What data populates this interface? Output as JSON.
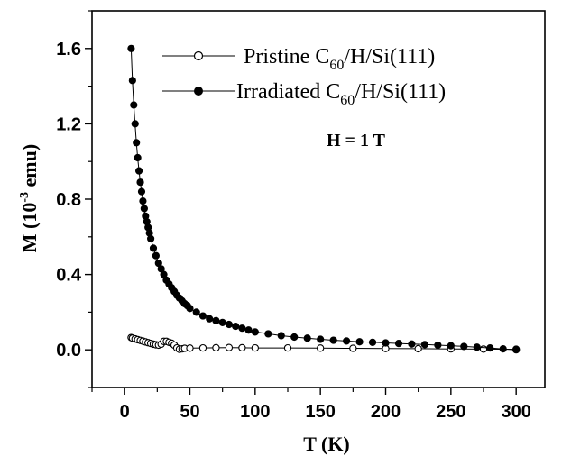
{
  "chart_data": {
    "type": "scatter",
    "xlabel": "T (K)",
    "ylabel": {
      "prefix": "M (10",
      "sup": "-3",
      "suffix": " emu)"
    },
    "xlim": [
      -25,
      322
    ],
    "ylim": [
      -0.2,
      1.8
    ],
    "xticks": [
      0,
      50,
      100,
      150,
      200,
      250,
      300
    ],
    "xtick_labels": [
      "0",
      "50",
      "100",
      "150",
      "200",
      "250",
      "300"
    ],
    "yticks": [
      0.0,
      0.4,
      0.8,
      1.2,
      1.6
    ],
    "ytick_labels": [
      "0.0",
      "0.4",
      "0.8",
      "1.2",
      "1.6"
    ],
    "annotation": "H = 1 T",
    "legend_position": "top-right",
    "series": [
      {
        "name": {
          "prefix": "Pristine C",
          "sub": "60",
          "suffix": "/H/Si(111)"
        },
        "marker": "open-circle",
        "line": true,
        "x": [
          5,
          6,
          8,
          10,
          12,
          14,
          16,
          18,
          20,
          22,
          24,
          26,
          28,
          30,
          32,
          34,
          36,
          38,
          40,
          42,
          44,
          46,
          50,
          60,
          70,
          80,
          90,
          100,
          125,
          150,
          175,
          200,
          225,
          250,
          275,
          300
        ],
        "y": [
          0.065,
          0.062,
          0.058,
          0.054,
          0.05,
          0.046,
          0.042,
          0.038,
          0.034,
          0.03,
          0.027,
          0.025,
          0.03,
          0.045,
          0.045,
          0.04,
          0.035,
          0.025,
          0.01,
          0.003,
          0.005,
          0.008,
          0.009,
          0.01,
          0.011,
          0.012,
          0.011,
          0.01,
          0.01,
          0.009,
          0.008,
          0.007,
          0.006,
          0.005,
          0.004,
          0.003
        ]
      },
      {
        "name": {
          "prefix": "Irradiated C",
          "sub": "60",
          "suffix": "/H/Si(111)"
        },
        "marker": "filled-circle",
        "line": true,
        "x": [
          5,
          6,
          7,
          8,
          9,
          10,
          11,
          12,
          13,
          14,
          15,
          16,
          17,
          18,
          19,
          20,
          22,
          24,
          26,
          28,
          30,
          32,
          34,
          36,
          38,
          40,
          42,
          44,
          46,
          48,
          50,
          55,
          60,
          65,
          70,
          75,
          80,
          85,
          90,
          95,
          100,
          110,
          120,
          130,
          140,
          150,
          160,
          170,
          180,
          190,
          200,
          210,
          220,
          230,
          240,
          250,
          260,
          270,
          280,
          290,
          300
        ],
        "y": [
          1.6,
          1.43,
          1.3,
          1.2,
          1.1,
          1.02,
          0.95,
          0.89,
          0.84,
          0.79,
          0.75,
          0.71,
          0.68,
          0.65,
          0.62,
          0.59,
          0.54,
          0.5,
          0.46,
          0.43,
          0.4,
          0.37,
          0.35,
          0.33,
          0.31,
          0.29,
          0.275,
          0.26,
          0.245,
          0.235,
          0.22,
          0.2,
          0.18,
          0.165,
          0.155,
          0.145,
          0.135,
          0.125,
          0.115,
          0.105,
          0.095,
          0.085,
          0.075,
          0.068,
          0.062,
          0.056,
          0.051,
          0.047,
          0.043,
          0.04,
          0.037,
          0.034,
          0.031,
          0.028,
          0.025,
          0.022,
          0.018,
          0.014,
          0.01,
          0.005,
          0.0
        ]
      }
    ]
  }
}
